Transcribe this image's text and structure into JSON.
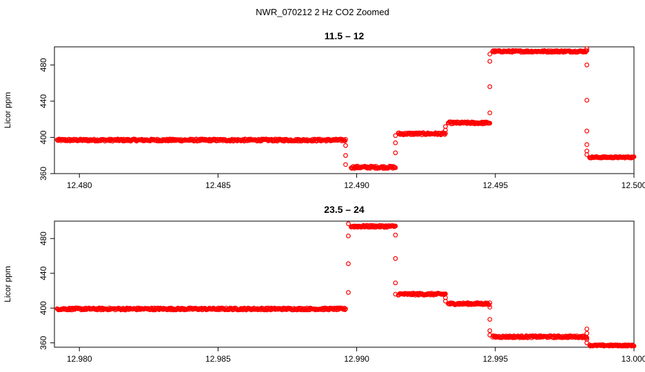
{
  "figure": {
    "suptitle": "NWR_070212  2 Hz CO2 Zoomed"
  },
  "chart_data": [
    {
      "type": "scatter",
      "title": "11.5 – 12",
      "xlabel": "",
      "ylabel": "Licor ppm",
      "xlim": [
        12.4791,
        12.5
      ],
      "ylim": [
        360,
        500
      ],
      "xticks": [
        12.48,
        12.485,
        12.49,
        12.495,
        12.5
      ],
      "xtick_labels": [
        "12.480",
        "12.485",
        "12.490",
        "12.495",
        "12.500"
      ],
      "yticks": [
        360,
        400,
        440,
        480
      ],
      "yticks_labels": [
        "360",
        "400",
        "440",
        "480"
      ],
      "marker_color": "#ff0000",
      "marker": "open-circle",
      "grid": false,
      "series": [
        {
          "segments": [
            {
              "x0": 12.4792,
              "x1": 12.4896,
              "y": 397,
              "noise": 1.2
            },
            {
              "x0": 12.4898,
              "x1": 12.4914,
              "y": 367,
              "noise": 1.3
            },
            {
              "x0": 12.4915,
              "x1": 12.4932,
              "y": 404,
              "noise": 1.2
            },
            {
              "x0": 12.4933,
              "x1": 12.4948,
              "y": 416,
              "noise": 1.2
            },
            {
              "x0": 12.4949,
              "x1": 12.4983,
              "y": 495,
              "noise": 1.0
            },
            {
              "x0": 12.4984,
              "x1": 12.5,
              "y": 378,
              "noise": 0.8
            }
          ],
          "transitions": [
            {
              "x": 12.4896,
              "y": [
                391,
                380,
                370
              ]
            },
            {
              "x": 12.4914,
              "y": [
                383,
                394,
                402
              ]
            },
            {
              "x": 12.4932,
              "y": [
                408,
                412
              ]
            },
            {
              "x": 12.4948,
              "y": [
                427,
                456,
                484,
                492
              ]
            },
            {
              "x": 12.4983,
              "y": [
                498,
                480,
                441,
                407,
                392,
                385,
                381
              ]
            }
          ]
        }
      ]
    },
    {
      "type": "scatter",
      "title": "23.5 – 24",
      "xlabel": "",
      "ylabel": "Licor ppm",
      "xlim": [
        12.9791,
        13.0
      ],
      "ylim": [
        355,
        500
      ],
      "xticks": [
        12.98,
        12.985,
        12.99,
        12.995,
        13.0
      ],
      "xtick_labels": [
        "12.980",
        "12.985",
        "12.990",
        "12.995",
        "13.000"
      ],
      "yticks": [
        360,
        400,
        440,
        480
      ],
      "yticks_labels": [
        "360",
        "400",
        "440",
        "480"
      ],
      "marker_color": "#ff0000",
      "marker": "open-circle",
      "grid": false,
      "series": [
        {
          "segments": [
            {
              "x0": 12.9792,
              "x1": 12.9896,
              "y": 399,
              "noise": 1.2
            },
            {
              "x0": 12.9898,
              "x1": 12.9914,
              "y": 494,
              "noise": 1.2
            },
            {
              "x0": 12.9915,
              "x1": 12.9932,
              "y": 416,
              "noise": 1.2
            },
            {
              "x0": 12.9933,
              "x1": 12.9948,
              "y": 405,
              "noise": 1.2
            },
            {
              "x0": 12.9949,
              "x1": 12.9983,
              "y": 367,
              "noise": 1.2
            },
            {
              "x0": 12.9984,
              "x1": 13.0,
              "y": 357,
              "noise": 0.8
            }
          ],
          "transitions": [
            {
              "x": 12.9897,
              "y": [
                418,
                451,
                483,
                497
              ]
            },
            {
              "x": 12.9914,
              "y": [
                484,
                457,
                429,
                416
              ]
            },
            {
              "x": 12.9932,
              "y": [
                412,
                408
              ]
            },
            {
              "x": 12.9948,
              "y": [
                401,
                387,
                374,
                369
              ]
            },
            {
              "x": 12.9983,
              "y": [
                376,
                371,
                364,
                360
              ]
            }
          ]
        }
      ]
    }
  ]
}
